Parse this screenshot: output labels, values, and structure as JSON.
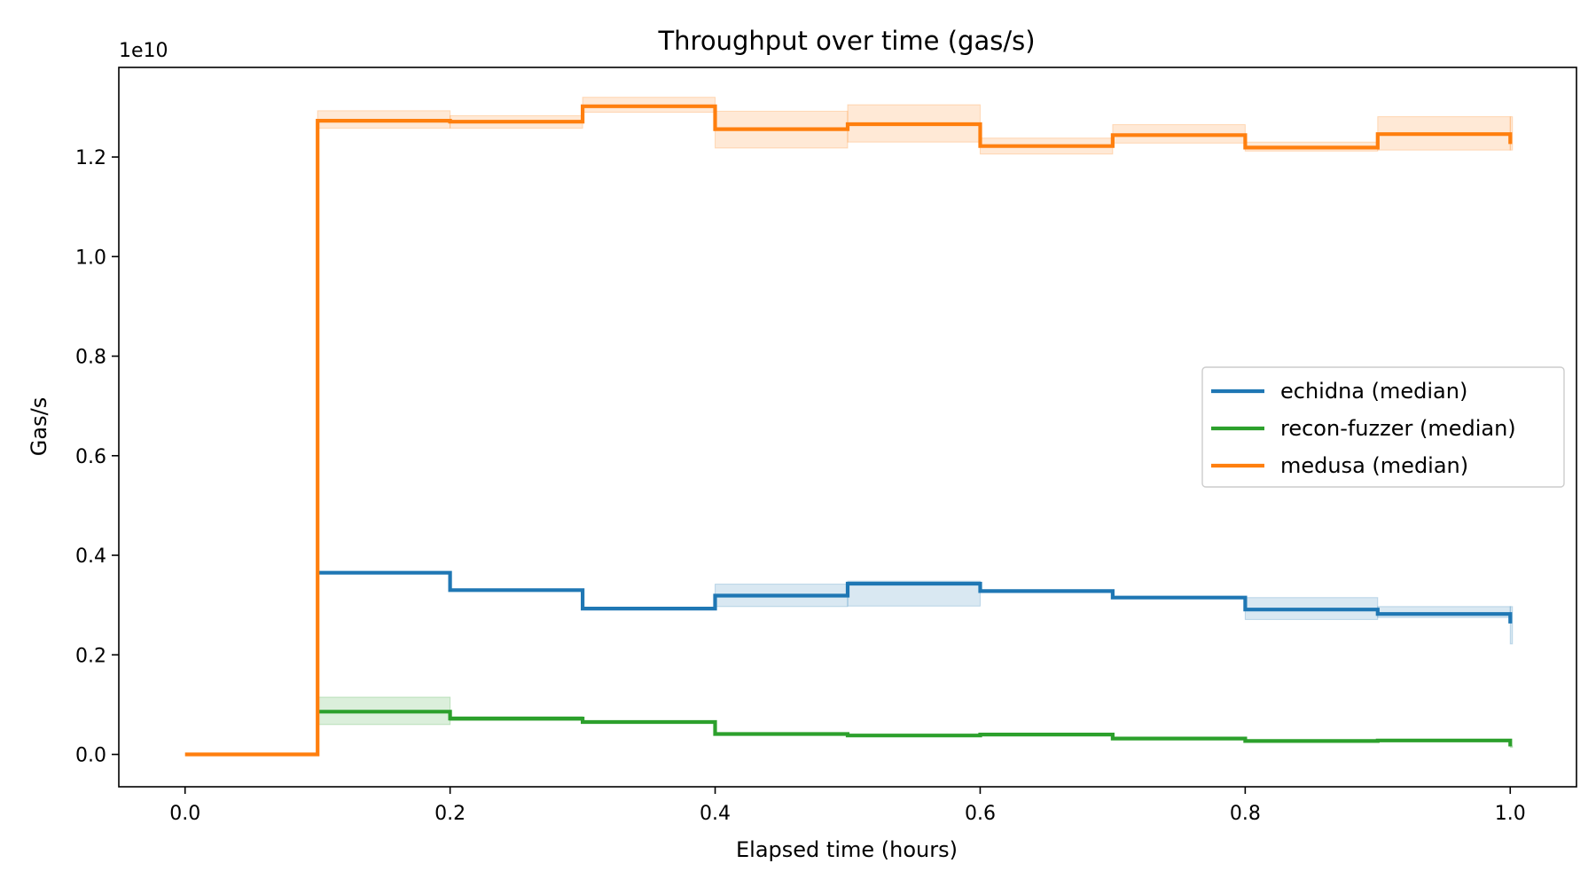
{
  "chart_data": {
    "type": "line",
    "title": "Throughput over time (gas/s)",
    "xlabel": "Elapsed time (hours)",
    "ylabel": "Gas/s",
    "y_offset_label": "1e10",
    "y_scale": 10000000000,
    "xlim": [
      -0.05,
      1.05
    ],
    "ylim": [
      -0.065,
      1.38
    ],
    "x_ticks": [
      0.0,
      0.2,
      0.4,
      0.6,
      0.8,
      1.0
    ],
    "x_tick_labels": [
      "0.0",
      "0.2",
      "0.4",
      "0.6",
      "0.8",
      "1.0"
    ],
    "y_ticks": [
      0.0,
      0.2,
      0.4,
      0.6,
      0.8,
      1.0,
      1.2
    ],
    "y_tick_labels": [
      "0.0",
      "0.2",
      "0.4",
      "0.6",
      "0.8",
      "1.0",
      "1.2"
    ],
    "legend_position": "center-right",
    "grid": false,
    "step_edges": [
      0.1,
      0.2,
      0.3,
      0.4,
      0.5,
      0.6,
      0.7,
      0.8,
      0.9,
      1.0
    ],
    "series": [
      {
        "name": "echidna (median)",
        "color": "#1f77b4",
        "values": [
          0.365,
          0.33,
          0.293,
          0.319,
          0.343,
          0.328,
          0.315,
          0.291,
          0.282,
          0.263
        ],
        "band_low": [
          0.365,
          0.33,
          0.293,
          0.297,
          0.298,
          0.328,
          0.315,
          0.271,
          0.275,
          0.222
        ],
        "band_high": [
          0.365,
          0.33,
          0.293,
          0.342,
          0.348,
          0.328,
          0.315,
          0.315,
          0.297,
          0.297
        ]
      },
      {
        "name": "recon-fuzzer (median)",
        "color": "#2ca02c",
        "values": [
          0.086,
          0.072,
          0.065,
          0.041,
          0.038,
          0.04,
          0.032,
          0.027,
          0.028,
          0.016
        ],
        "band_low": [
          0.06,
          0.068,
          0.064,
          0.04,
          0.037,
          0.039,
          0.031,
          0.026,
          0.027,
          0.014
        ],
        "band_high": [
          0.115,
          0.076,
          0.066,
          0.042,
          0.039,
          0.041,
          0.033,
          0.028,
          0.029,
          0.017
        ]
      },
      {
        "name": "medusa (median)",
        "color": "#ff7f0e",
        "values": [
          1.273,
          1.271,
          1.302,
          1.256,
          1.266,
          1.222,
          1.244,
          1.219,
          1.246,
          1.226
        ],
        "band_low": [
          1.258,
          1.258,
          1.29,
          1.218,
          1.23,
          1.206,
          1.228,
          1.212,
          1.214,
          1.214
        ],
        "band_high": [
          1.293,
          1.283,
          1.32,
          1.292,
          1.305,
          1.238,
          1.265,
          1.23,
          1.281,
          1.281
        ]
      }
    ],
    "start_segment": {
      "x": [
        0.0,
        0.1
      ],
      "value": 0.0,
      "series": "medusa (median)"
    }
  }
}
